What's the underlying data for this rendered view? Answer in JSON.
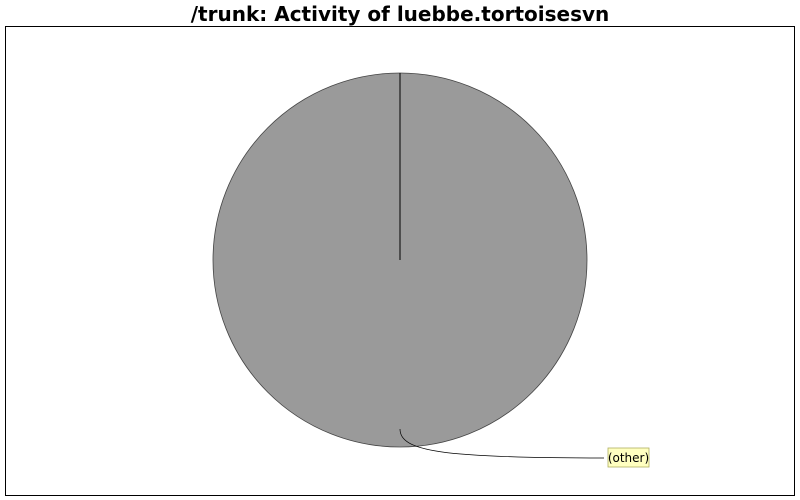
{
  "chart_data": {
    "type": "pie",
    "title": "/trunk: Activity of luebbe.tortoisesvn",
    "slices": [
      {
        "label": "(other)",
        "value": 100,
        "color": "#9a9a9a"
      }
    ],
    "start_angle": "top",
    "direction": "clockwise",
    "label_box_color": "#ffffc0",
    "label_border_color": "#b0b060"
  }
}
